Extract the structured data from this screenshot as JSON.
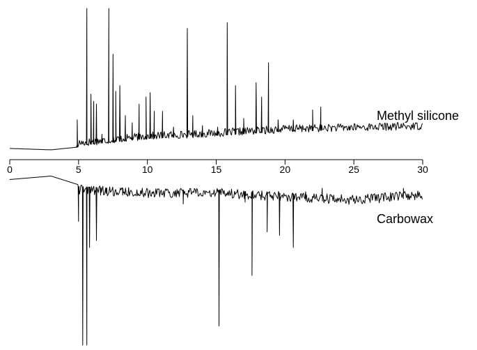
{
  "chart_data": {
    "type": "line",
    "title": "",
    "xlabel": "",
    "ylabel": "",
    "xlim": [
      0,
      30
    ],
    "x_ticks": [
      0,
      5,
      10,
      15,
      20,
      25,
      30
    ],
    "x_tick_labels": [
      "0",
      "5",
      "10",
      "15",
      "20",
      "25",
      "30"
    ],
    "grid": false,
    "series": [
      {
        "name": "Methyl silicone",
        "direction": "up",
        "baseline": [
          [
            0,
            0.02
          ],
          [
            3,
            0.01
          ],
          [
            5,
            0.03
          ],
          [
            10,
            0.08
          ],
          [
            15,
            0.1
          ],
          [
            20,
            0.13
          ],
          [
            25,
            0.14
          ],
          [
            30,
            0.15
          ]
        ],
        "peaks": [
          [
            4.9,
            0.22
          ],
          [
            5.6,
            1.0
          ],
          [
            5.9,
            0.4
          ],
          [
            6.1,
            0.35
          ],
          [
            6.3,
            0.33
          ],
          [
            6.7,
            0.12
          ],
          [
            7.2,
            1.0
          ],
          [
            7.5,
            0.68
          ],
          [
            7.7,
            0.42
          ],
          [
            8.0,
            0.46
          ],
          [
            8.4,
            0.25
          ],
          [
            8.9,
            0.2
          ],
          [
            9.4,
            0.33
          ],
          [
            9.9,
            0.38
          ],
          [
            10.2,
            0.41
          ],
          [
            10.5,
            0.28
          ],
          [
            11.1,
            0.28
          ],
          [
            11.9,
            0.17
          ],
          [
            12.9,
            0.86
          ],
          [
            13.3,
            0.25
          ],
          [
            14.0,
            0.18
          ],
          [
            15.1,
            0.17
          ],
          [
            15.8,
            0.9
          ],
          [
            16.4,
            0.46
          ],
          [
            17.0,
            0.23
          ],
          [
            17.9,
            0.48
          ],
          [
            18.3,
            0.38
          ],
          [
            18.8,
            0.62
          ],
          [
            19.5,
            0.22
          ],
          [
            20.6,
            0.22
          ],
          [
            22.0,
            0.29
          ],
          [
            22.6,
            0.31
          ],
          [
            24.7,
            0.17
          ]
        ]
      },
      {
        "name": "Carbowax",
        "direction": "down",
        "baseline": [
          [
            0,
            0.05
          ],
          [
            3,
            0.03
          ],
          [
            5,
            0.08
          ],
          [
            10,
            0.1
          ],
          [
            15,
            0.1
          ],
          [
            20,
            0.12
          ],
          [
            25,
            0.14
          ],
          [
            30,
            0.11
          ]
        ],
        "peaks": [
          [
            5.0,
            0.29
          ],
          [
            5.3,
            1.0
          ],
          [
            5.6,
            1.0
          ],
          [
            5.8,
            0.44
          ],
          [
            6.3,
            0.4
          ],
          [
            6.6,
            0.12
          ],
          [
            7.0,
            0.13
          ],
          [
            8.2,
            0.14
          ],
          [
            12.6,
            0.19
          ],
          [
            15.2,
            0.89
          ],
          [
            17.1,
            0.18
          ],
          [
            17.6,
            0.6
          ],
          [
            18.7,
            0.35
          ],
          [
            19.6,
            0.37
          ],
          [
            20.6,
            0.44
          ],
          [
            21.5,
            0.12
          ],
          [
            22.7,
            0.1
          ],
          [
            28.6,
            0.1
          ]
        ]
      }
    ],
    "axis_color": "#000000",
    "trace_color": "#000000"
  }
}
